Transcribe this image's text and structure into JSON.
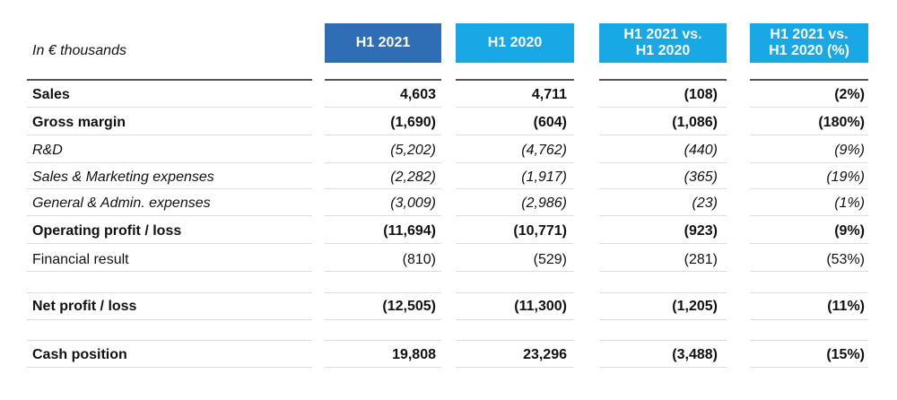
{
  "header": {
    "unit_label": "In € thousands",
    "columns": [
      {
        "label": "H1 2021",
        "color": "#2F6EB5"
      },
      {
        "label": "H1 2020",
        "color": "#19A8E6"
      },
      {
        "label": "H1 2021 vs.\nH1 2020",
        "color": "#19A8E6"
      },
      {
        "label": "H1 2021 vs.\nH1 2020 (%)",
        "color": "#19A8E6"
      }
    ]
  },
  "rows": [
    {
      "label": "Sales",
      "values": [
        "4,603",
        "4,711",
        "(108)",
        "(2%)"
      ],
      "style": "bold"
    },
    {
      "label": "Gross margin",
      "values": [
        "(1,690)",
        "(604)",
        "(1,086)",
        "(180%)"
      ],
      "style": "bold"
    },
    {
      "label": "R&D",
      "values": [
        "(5,202)",
        "(4,762)",
        "(440)",
        "(9%)"
      ],
      "style": "italic"
    },
    {
      "label": "Sales & Marketing expenses",
      "values": [
        "(2,282)",
        "(1,917)",
        "(365)",
        "(19%)"
      ],
      "style": "italic"
    },
    {
      "label": "General & Admin. expenses",
      "values": [
        "(3,009)",
        "(2,986)",
        "(23)",
        "(1%)"
      ],
      "style": "italic"
    },
    {
      "label": "Operating profit / loss",
      "values": [
        "(11,694)",
        "(10,771)",
        "(923)",
        "(9%)"
      ],
      "style": "bold"
    },
    {
      "label": "Financial result",
      "values": [
        "(810)",
        "(529)",
        "(281)",
        "(53%)"
      ],
      "style": "normal"
    },
    {
      "label": "Net profit / loss",
      "values": [
        "(12,505)",
        "(11,300)",
        "(1,205)",
        "(11%)"
      ],
      "style": "bold"
    },
    {
      "label": "Cash position",
      "values": [
        "19,808",
        "23,296",
        "(3,488)",
        "(15%)"
      ],
      "style": "bold"
    }
  ],
  "colors": {
    "rule": "#dddddd",
    "rule_header": "#555555"
  }
}
